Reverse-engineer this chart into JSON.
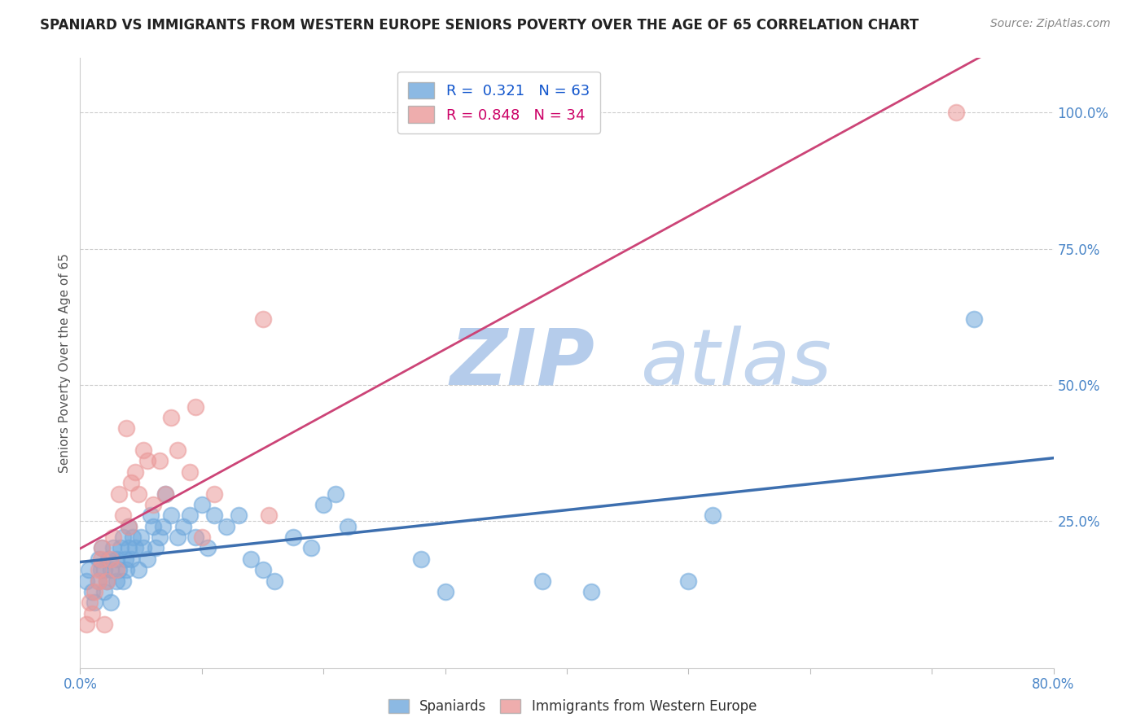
{
  "title": "SPANIARD VS IMMIGRANTS FROM WESTERN EUROPE SENIORS POVERTY OVER THE AGE OF 65 CORRELATION CHART",
  "source": "Source: ZipAtlas.com",
  "ylabel": "Seniors Poverty Over the Age of 65",
  "xlim": [
    0.0,
    0.8
  ],
  "ylim": [
    -0.02,
    1.1
  ],
  "xticks": [
    0.0,
    0.1,
    0.2,
    0.3,
    0.4,
    0.5,
    0.6,
    0.7,
    0.8
  ],
  "xticklabels": [
    "0.0%",
    "",
    "",
    "",
    "",
    "",
    "",
    "",
    "80.0%"
  ],
  "yticks_right": [
    0.0,
    0.25,
    0.5,
    0.75,
    1.0
  ],
  "yticklabels_right": [
    "",
    "25.0%",
    "50.0%",
    "75.0%",
    "100.0%"
  ],
  "blue_color": "#6fa8dc",
  "pink_color": "#ea9999",
  "blue_line_color": "#3d6faf",
  "pink_line_color": "#cc4477",
  "legend_blue_label": "R =  0.321   N = 63",
  "legend_pink_label": "R = 0.848   N = 34",
  "watermark": "ZIPAtlas",
  "watermark_color": "#c9daf8",
  "blue_scatter_x": [
    0.005,
    0.007,
    0.01,
    0.012,
    0.015,
    0.015,
    0.017,
    0.018,
    0.02,
    0.02,
    0.022,
    0.023,
    0.025,
    0.025,
    0.027,
    0.03,
    0.03,
    0.032,
    0.033,
    0.035,
    0.035,
    0.037,
    0.038,
    0.04,
    0.04,
    0.042,
    0.043,
    0.045,
    0.048,
    0.05,
    0.052,
    0.055,
    0.058,
    0.06,
    0.062,
    0.065,
    0.068,
    0.07,
    0.075,
    0.08,
    0.085,
    0.09,
    0.095,
    0.1,
    0.105,
    0.11,
    0.12,
    0.13,
    0.14,
    0.15,
    0.16,
    0.175,
    0.19,
    0.2,
    0.21,
    0.22,
    0.28,
    0.3,
    0.38,
    0.42,
    0.5,
    0.52,
    0.735
  ],
  "blue_scatter_y": [
    0.14,
    0.16,
    0.12,
    0.1,
    0.14,
    0.18,
    0.16,
    0.2,
    0.12,
    0.16,
    0.14,
    0.18,
    0.1,
    0.16,
    0.2,
    0.14,
    0.18,
    0.16,
    0.2,
    0.14,
    0.22,
    0.18,
    0.16,
    0.2,
    0.24,
    0.18,
    0.22,
    0.2,
    0.16,
    0.22,
    0.2,
    0.18,
    0.26,
    0.24,
    0.2,
    0.22,
    0.24,
    0.3,
    0.26,
    0.22,
    0.24,
    0.26,
    0.22,
    0.28,
    0.2,
    0.26,
    0.24,
    0.26,
    0.18,
    0.16,
    0.14,
    0.22,
    0.2,
    0.28,
    0.3,
    0.24,
    0.18,
    0.12,
    0.14,
    0.12,
    0.14,
    0.26,
    0.62
  ],
  "pink_scatter_x": [
    0.005,
    0.008,
    0.01,
    0.012,
    0.015,
    0.015,
    0.017,
    0.018,
    0.02,
    0.022,
    0.025,
    0.027,
    0.03,
    0.032,
    0.035,
    0.038,
    0.04,
    0.042,
    0.045,
    0.048,
    0.052,
    0.055,
    0.06,
    0.065,
    0.07,
    0.075,
    0.08,
    0.09,
    0.095,
    0.1,
    0.11,
    0.15,
    0.155,
    0.72
  ],
  "pink_scatter_y": [
    0.06,
    0.1,
    0.08,
    0.12,
    0.14,
    0.16,
    0.18,
    0.2,
    0.06,
    0.14,
    0.18,
    0.22,
    0.16,
    0.3,
    0.26,
    0.42,
    0.24,
    0.32,
    0.34,
    0.3,
    0.38,
    0.36,
    0.28,
    0.36,
    0.3,
    0.44,
    0.38,
    0.34,
    0.46,
    0.22,
    0.3,
    0.62,
    0.26,
    1.0
  ]
}
